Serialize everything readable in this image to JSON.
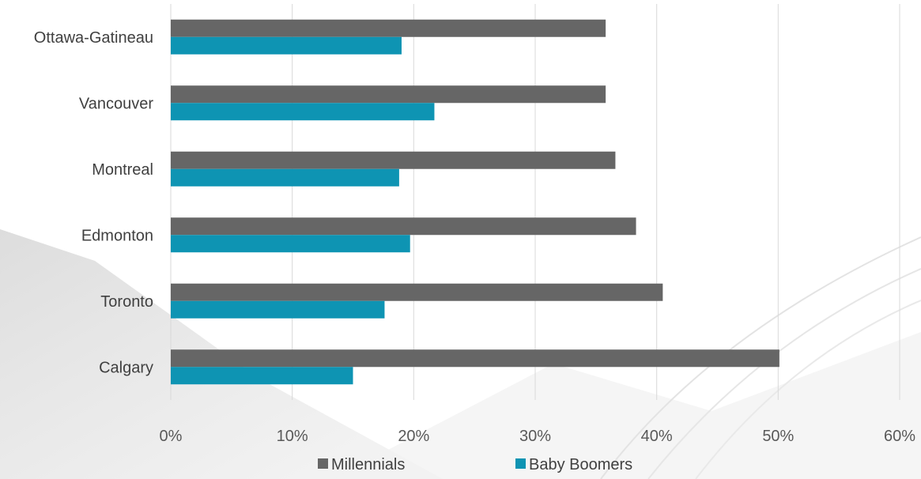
{
  "chart_data": {
    "type": "bar",
    "orientation": "horizontal",
    "categories": [
      "Ottawa-Gatineau",
      "Vancouver",
      "Montreal",
      "Edmonton",
      "Toronto",
      "Calgary"
    ],
    "series": [
      {
        "name": "Millennials",
        "color": "#666666",
        "values": [
          0.358,
          0.358,
          0.366,
          0.383,
          0.405,
          0.501
        ]
      },
      {
        "name": "Baby Boomers",
        "color": "#0e94b3",
        "values": [
          0.19,
          0.217,
          0.188,
          0.197,
          0.176,
          0.15
        ]
      }
    ],
    "xlim": [
      0,
      0.6
    ],
    "xticks": [
      "0%",
      "10%",
      "20%",
      "30%",
      "40%",
      "50%",
      "60%"
    ],
    "grid": true,
    "legend_position": "bottom",
    "title": "",
    "xlabel": "",
    "ylabel": ""
  }
}
